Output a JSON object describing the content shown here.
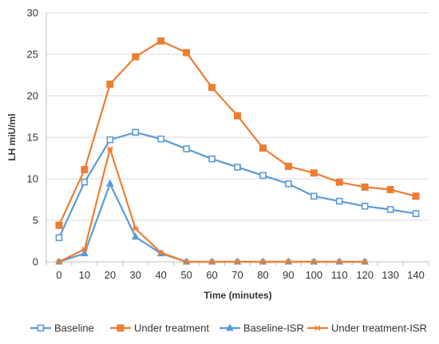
{
  "chart_data": {
    "type": "line",
    "xlabel": "Time   (minutes)",
    "ylabel": "LH   miU/ml",
    "xlim": [
      0,
      140
    ],
    "ylim": [
      0,
      30
    ],
    "yticks": [
      0,
      5,
      10,
      15,
      20,
      25,
      30
    ],
    "grid": "horizontal",
    "legend_position": "bottom",
    "x": [
      0,
      10,
      20,
      30,
      40,
      50,
      60,
      70,
      80,
      90,
      100,
      110,
      120,
      130,
      140
    ],
    "series": [
      {
        "name": "Baseline",
        "color": "#5B9BD5",
        "marker": "square-open",
        "values": [
          2.9,
          9.6,
          14.7,
          15.6,
          14.8,
          13.6,
          12.4,
          11.4,
          10.4,
          9.4,
          7.9,
          7.3,
          6.7,
          6.3,
          5.8
        ]
      },
      {
        "name": "Under treatment",
        "color": "#ED7D31",
        "marker": "square",
        "values": [
          4.4,
          11.1,
          21.4,
          24.7,
          26.6,
          25.2,
          21.0,
          17.6,
          13.7,
          11.5,
          10.7,
          9.6,
          9.0,
          8.7,
          7.9
        ]
      },
      {
        "name": "Baseline-ISR",
        "color": "#5B9BD5",
        "marker": "triangle",
        "values": [
          0,
          1.0,
          9.4,
          3.0,
          1.0,
          0,
          0,
          0,
          0,
          0,
          0,
          0,
          0,
          null,
          null
        ]
      },
      {
        "name": "Under treatment-ISR",
        "color": "#ED7D31",
        "marker": "star",
        "values": [
          0,
          1.5,
          13.6,
          4.0,
          1.1,
          0,
          0,
          0,
          0,
          0,
          0,
          0,
          0,
          null,
          null
        ]
      }
    ]
  }
}
